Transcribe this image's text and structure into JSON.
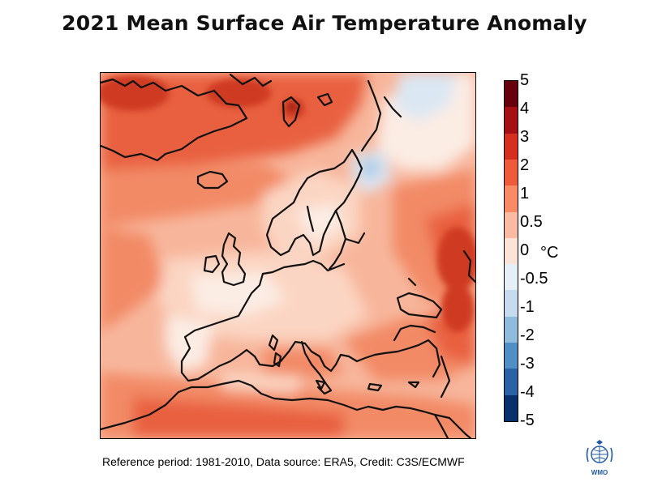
{
  "title": "2021 Mean Surface Air Temperature Anomaly",
  "footer": "Reference period: 1981-2010, Data source: ERA5, Credit: C3S/ECMWF",
  "colorbar": {
    "unit": "°C",
    "labels": [
      "5",
      "4",
      "3",
      "2",
      "1",
      "0.5",
      "0",
      "-0.5",
      "-1",
      "-2",
      "-3",
      "-4",
      "-5"
    ],
    "colors": [
      "#67000d",
      "#a50f15",
      "#d42f1f",
      "#ef5a3a",
      "#f88a66",
      "#fcbba1",
      "#fde3d7",
      "#e6eef6",
      "#c6dbef",
      "#8fbcdc",
      "#4f8fc4",
      "#2a62a6",
      "#08306b"
    ]
  },
  "map_colors": {
    "base": "#f7b69c",
    "warm": "#f28a66",
    "hot": "#e8603f",
    "very_hot": "#cf3a22",
    "extreme": "#8e1208",
    "pale": "#fbd5c3",
    "neutral": "#fbece4",
    "cool": "#dbe7f3",
    "cold": "#a9c7e4",
    "coast": "#111111"
  },
  "logo": {
    "text": "WMO"
  }
}
